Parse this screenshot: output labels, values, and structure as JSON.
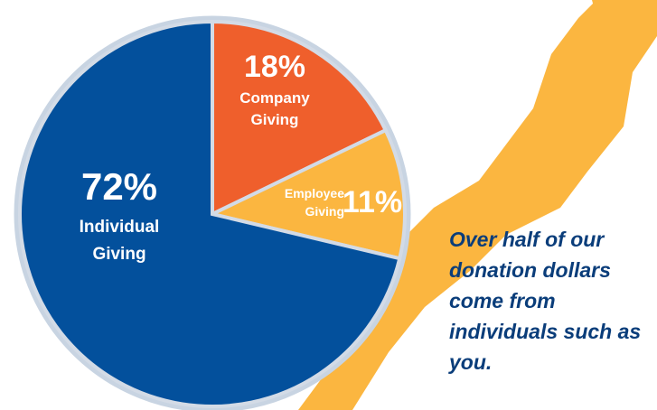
{
  "chart_data": {
    "type": "pie",
    "categories": [
      "Company Giving",
      "Employee Giving",
      "Individual Giving"
    ],
    "values": [
      18,
      11,
      72
    ],
    "value_labels": [
      "18%",
      "11%",
      "72%"
    ],
    "colors": [
      "#ef5f2c",
      "#fbb640",
      "#03509c"
    ]
  },
  "caption": "Over half of our donation dollars come from individuals such as you."
}
